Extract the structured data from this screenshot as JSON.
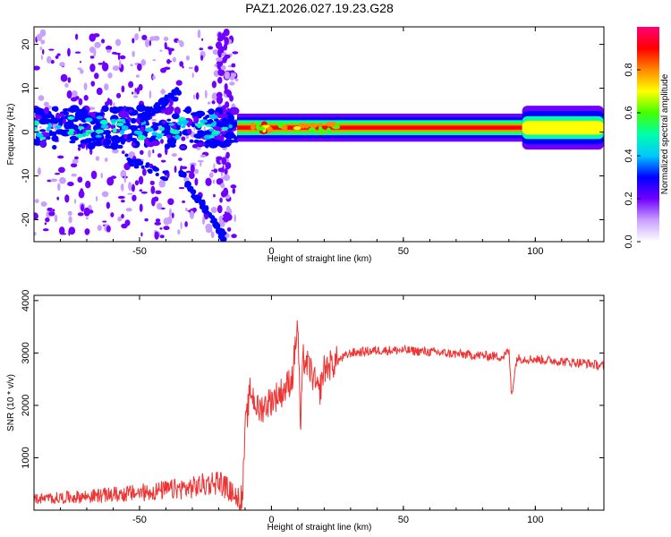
{
  "figure_title": "PAZ1.2026.027.19.23.G28",
  "chart_data": [
    {
      "type": "heatmap",
      "title": "",
      "xlabel": "Height of straight line (km)",
      "ylabel": "Frequency (Hz)",
      "xlim": [
        -90,
        126
      ],
      "ylim": [
        -25,
        24
      ],
      "xticks": [
        -50,
        0,
        50,
        100
      ],
      "yticks": [
        -20,
        -10,
        0,
        10,
        20
      ],
      "colorbar": {
        "label": "Normalized spectral amplitude",
        "range": [
          0,
          1
        ],
        "ticks": [
          0.0,
          0.2,
          0.4,
          0.6,
          0.8
        ],
        "colors": [
          "#ffffff",
          "#c8a0ff",
          "#7000ff",
          "#0000ff",
          "#00c8ff",
          "#00ffaa",
          "#44ff00",
          "#ffff00",
          "#ff8800",
          "#ff0000",
          "#ff0077"
        ]
      },
      "features": {
        "carrier_band_center_hz": 1,
        "carrier_band_start_km": -13,
        "noisy_region_km": [
          -90,
          -13
        ],
        "fading_track_km": [
          -35,
          -18
        ],
        "fading_track_hz": [
          -9,
          -24
        ],
        "wide_band_start_km": 95
      }
    },
    {
      "type": "line",
      "title": "",
      "xlabel": "Height of straight line (km)",
      "ylabel": "SNR (10 * v/v)",
      "xlim": [
        -90,
        126
      ],
      "ylim": [
        0,
        4100
      ],
      "xticks": [
        -50,
        0,
        50,
        100
      ],
      "yticks": [
        1000,
        2000,
        3000,
        4000
      ],
      "series": [
        {
          "name": "SNR",
          "color": "#ee3333",
          "x": [
            -90,
            -70,
            -50,
            -30,
            -20,
            -14,
            -11,
            -10,
            -8,
            -5,
            0,
            5,
            8,
            9,
            10,
            11,
            12,
            15,
            18,
            20,
            25,
            30,
            40,
            50,
            60,
            70,
            80,
            88,
            90,
            91,
            93,
            100,
            110,
            120,
            126
          ],
          "y": [
            220,
            260,
            320,
            430,
            600,
            180,
            220,
            1500,
            2300,
            1900,
            2100,
            2300,
            2550,
            3100,
            3600,
            1500,
            2900,
            2650,
            2200,
            2700,
            2850,
            3000,
            3050,
            3050,
            3020,
            2980,
            2950,
            2930,
            3050,
            2200,
            2900,
            2880,
            2840,
            2800,
            2750
          ]
        }
      ]
    }
  ]
}
